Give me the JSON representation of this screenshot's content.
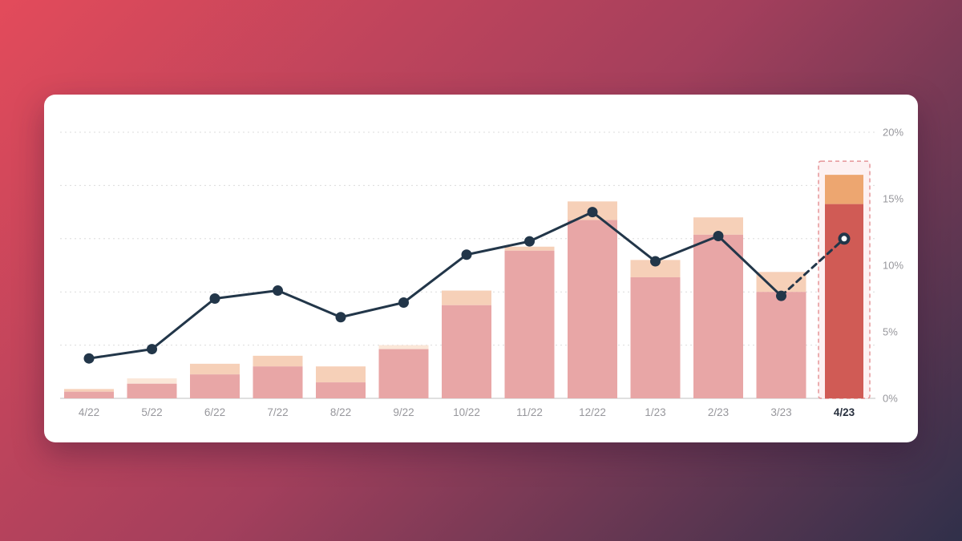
{
  "page": {
    "background_gradient": [
      "#e34b5b",
      "#a33f5c",
      "#30304a"
    ],
    "card_color": "#ffffff"
  },
  "chart_data": {
    "type": "bar",
    "subtype": "stacked bars with overlaid line, last period highlighted as forecast",
    "categories": [
      "4/22",
      "5/22",
      "6/22",
      "7/22",
      "8/22",
      "9/22",
      "10/22",
      "11/22",
      "12/22",
      "1/23",
      "2/23",
      "3/23",
      "4/23"
    ],
    "series": [
      {
        "name": "bar-main",
        "type": "bar",
        "color": "#e8a6a6",
        "values": [
          0.5,
          1.1,
          1.8,
          2.4,
          1.2,
          3.7,
          7.0,
          11.1,
          13.4,
          9.1,
          12.3,
          8.0,
          14.6
        ]
      },
      {
        "name": "bar-cap",
        "type": "bar",
        "color": "#f6d0b8",
        "values": [
          0.2,
          0.4,
          0.8,
          0.8,
          1.2,
          0.3,
          1.1,
          0.3,
          1.4,
          1.3,
          1.3,
          1.5,
          2.2
        ]
      },
      {
        "name": "trend-line",
        "type": "line",
        "color": "#223649",
        "values": [
          3.0,
          3.7,
          7.5,
          8.1,
          6.1,
          7.2,
          10.8,
          11.8,
          14.0,
          10.3,
          12.2,
          7.7,
          12.0
        ]
      }
    ],
    "faint_cap_indices": [
      1,
      5
    ],
    "faint_cap_color": "#fbe7d8",
    "highlight": {
      "category": "4/23",
      "bar_color": "#d05b55",
      "cap_color": "#eda670",
      "box_fill": "#fdf1f2",
      "box_border": "#e59598",
      "line_segment_style": "dashed",
      "last_point_style": "open-white"
    },
    "y_axis": {
      "position": "right",
      "labels": [
        "0%",
        "5%",
        "10%",
        "15%",
        "20%"
      ],
      "label_values": [
        0,
        5,
        10,
        15,
        20
      ],
      "gridline_values": [
        4,
        8,
        12,
        16,
        20
      ],
      "range": [
        0,
        20
      ],
      "label_color": "#97979c",
      "gridline_color": "#dcdcdc",
      "axis_line_color": "#d5d5d5",
      "grid_style": "dashed"
    },
    "x_axis": {
      "label_color": "#97979c",
      "highlight_label_color": "#28303e",
      "highlight_label": "4/23"
    },
    "title": "",
    "xlabel": "",
    "ylabel": ""
  }
}
